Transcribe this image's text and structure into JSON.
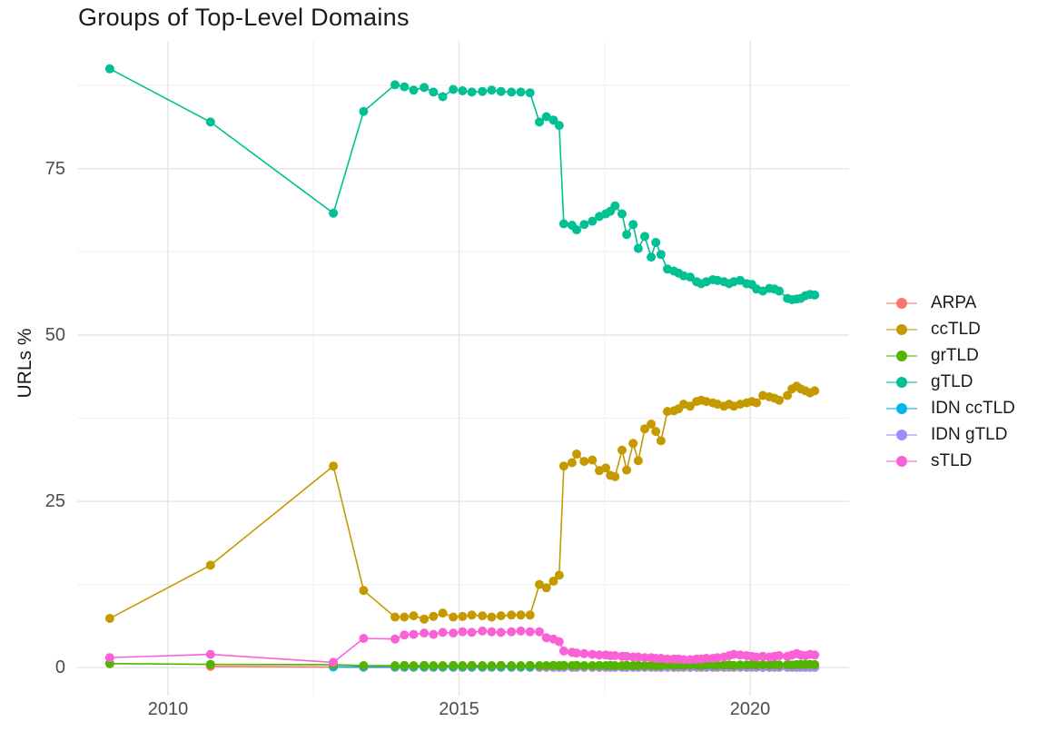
{
  "chart_data": {
    "type": "line",
    "title": "Groups of Top-Level Domains",
    "xlabel": "",
    "ylabel": "URLs %",
    "grid": true,
    "legend_position": "right",
    "axes": {
      "xlim": [
        2008.44,
        2021.7
      ],
      "ylim": [
        -4.2,
        94.2
      ],
      "x_ticks": [
        {
          "label": "2010",
          "value": 2010
        },
        {
          "label": "2015",
          "value": 2015
        },
        {
          "label": "2020",
          "value": 2020
        }
      ],
      "y_ticks": [
        {
          "label": "0",
          "value": 0
        },
        {
          "label": "25",
          "value": 25
        },
        {
          "label": "50",
          "value": 50
        },
        {
          "label": "75",
          "value": 75
        }
      ],
      "x_minor": [
        2012.5,
        2017.5
      ],
      "y_minor": [
        12.5,
        37.5,
        62.5,
        87.5
      ]
    },
    "x": [
      2009.0,
      2010.73,
      2012.84,
      2013.36,
      2013.9,
      2014.06,
      2014.22,
      2014.4,
      2014.56,
      2014.72,
      2014.9,
      2015.06,
      2015.22,
      2015.4,
      2015.56,
      2015.72,
      2015.9,
      2016.06,
      2016.22,
      2016.38,
      2016.5,
      2016.62,
      2016.72,
      2016.8,
      2016.94,
      2017.02,
      2017.15,
      2017.29,
      2017.41,
      2017.52,
      2017.6,
      2017.68,
      2017.8,
      2017.88,
      2017.99,
      2018.08,
      2018.19,
      2018.3,
      2018.38,
      2018.47,
      2018.58,
      2018.69,
      2018.77,
      2018.86,
      2018.97,
      2019.08,
      2019.16,
      2019.25,
      2019.36,
      2019.44,
      2019.55,
      2019.64,
      2019.72,
      2019.83,
      2019.94,
      2020.03,
      2020.11,
      2020.22,
      2020.33,
      2020.42,
      2020.5,
      2020.64,
      2020.72,
      2020.8,
      2020.87,
      2020.95,
      2021.03,
      2021.11
    ],
    "draw_order": [
      "ARPA",
      "IDN ccTLD",
      "IDN gTLD",
      "gTLD",
      "ccTLD",
      "grTLD",
      "sTLD"
    ],
    "series": [
      {
        "name": "ARPA",
        "color": "#F8766D",
        "values": [
          null,
          0.2,
          0.1,
          0.05,
          0.05,
          0.05,
          0.05,
          0.05,
          0.05,
          0.05,
          0.05,
          0.05,
          0.05,
          0.05,
          0.05,
          0.05,
          0.05,
          0.05,
          0.05,
          0.05,
          0.05,
          0.05,
          0.05,
          0.05,
          0.05,
          0.05,
          0.05,
          0.05,
          0.05,
          0.05,
          0.05,
          0.05,
          0.05,
          0.05,
          0.05,
          0.05,
          0.05,
          0.05,
          0.05,
          0.05,
          0.05,
          0.05,
          0.05,
          0.05,
          0.05,
          0.05,
          0.05,
          0.05,
          0.05,
          0.05,
          0.05,
          0.05,
          0.05,
          0.05,
          0.05,
          0.05,
          0.05,
          0.05,
          0.05,
          0.05,
          0.05,
          0.05,
          0.05,
          0.05,
          0.05,
          0.05,
          0.05,
          0.05
        ]
      },
      {
        "name": "ccTLD",
        "color": "#C49A00",
        "values": [
          7.4,
          15.4,
          30.3,
          11.6,
          7.6,
          7.6,
          7.8,
          7.3,
          7.7,
          8.2,
          7.6,
          7.7,
          7.9,
          7.8,
          7.6,
          7.8,
          7.9,
          7.9,
          7.9,
          12.5,
          12.0,
          13.0,
          13.9,
          30.3,
          30.8,
          32.1,
          31.0,
          31.2,
          29.6,
          30.0,
          28.9,
          28.7,
          32.7,
          29.7,
          33.7,
          31.1,
          35.9,
          36.6,
          35.5,
          34.1,
          38.5,
          38.6,
          38.9,
          39.6,
          39.3,
          40.0,
          40.2,
          40.0,
          39.8,
          39.6,
          39.3,
          39.6,
          39.3,
          39.6,
          39.8,
          40.0,
          39.8,
          40.9,
          40.7,
          40.5,
          40.2,
          40.9,
          41.9,
          42.3,
          41.9,
          41.6,
          41.3,
          41.6
        ]
      },
      {
        "name": "grTLD",
        "color": "#53B400",
        "values": [
          0.6,
          0.5,
          0.45,
          0.3,
          0.3,
          0.35,
          0.3,
          0.35,
          0.3,
          0.3,
          0.35,
          0.3,
          0.35,
          0.3,
          0.3,
          0.35,
          0.3,
          0.3,
          0.35,
          0.3,
          0.3,
          0.35,
          0.3,
          0.35,
          0.3,
          0.35,
          0.3,
          0.3,
          0.35,
          0.3,
          0.35,
          0.3,
          0.3,
          0.35,
          0.3,
          0.35,
          0.3,
          0.35,
          0.3,
          0.3,
          0.4,
          0.35,
          0.4,
          0.35,
          0.4,
          0.4,
          0.35,
          0.4,
          0.4,
          0.35,
          0.4,
          0.4,
          0.35,
          0.4,
          0.4,
          0.45,
          0.4,
          0.45,
          0.4,
          0.45,
          0.4,
          0.45,
          0.4,
          0.45,
          0.5,
          0.45,
          0.5,
          0.45
        ]
      },
      {
        "name": "gTLD",
        "color": "#00C094",
        "values": [
          90.0,
          82.0,
          68.3,
          83.6,
          87.6,
          87.3,
          86.8,
          87.2,
          86.5,
          85.8,
          86.9,
          86.7,
          86.5,
          86.6,
          86.8,
          86.6,
          86.5,
          86.5,
          86.4,
          82.0,
          82.8,
          82.3,
          81.5,
          66.7,
          66.5,
          65.8,
          66.6,
          67.1,
          67.8,
          68.2,
          68.6,
          69.4,
          68.2,
          65.1,
          66.6,
          63.0,
          64.8,
          61.7,
          63.9,
          62.1,
          59.9,
          59.6,
          59.3,
          58.9,
          58.7,
          58.0,
          57.7,
          58.0,
          58.3,
          58.2,
          58.0,
          57.7,
          58.0,
          58.2,
          57.7,
          57.6,
          56.9,
          56.6,
          57.0,
          56.9,
          56.6,
          55.5,
          55.3,
          55.4,
          55.5,
          55.9,
          56.1,
          56.0
        ]
      },
      {
        "name": "IDN ccTLD",
        "color": "#00B6EB",
        "values": [
          null,
          null,
          0.12,
          0.12,
          0.12,
          0.12,
          0.12,
          0.12,
          0.12,
          0.12,
          0.12,
          0.12,
          0.12,
          0.12,
          0.12,
          0.12,
          0.12,
          0.12,
          0.12,
          0.12,
          0.12,
          0.12,
          0.12,
          0.12,
          0.12,
          0.12,
          0.12,
          0.12,
          0.12,
          0.12,
          0.12,
          0.12,
          0.12,
          0.12,
          0.12,
          0.12,
          0.12,
          0.12,
          0.12,
          0.12,
          0.12,
          0.12,
          0.12,
          0.12,
          0.12,
          0.12,
          0.12,
          0.12,
          0.12,
          0.12,
          0.12,
          0.12,
          0.12,
          0.12,
          0.12,
          0.12,
          0.12,
          0.12,
          0.12,
          0.12,
          0.12,
          0.12,
          0.12,
          0.12,
          0.12,
          0.12,
          0.12,
          0.12
        ]
      },
      {
        "name": "IDN gTLD",
        "color": "#A58AFF",
        "values": [
          null,
          null,
          null,
          null,
          null,
          null,
          null,
          null,
          null,
          null,
          null,
          null,
          null,
          null,
          null,
          null,
          null,
          null,
          null,
          0.1,
          0.1,
          0.1,
          0.1,
          0.1,
          0.1,
          0.1,
          0.1,
          0.1,
          0.1,
          0.1,
          0.1,
          0.1,
          0.1,
          0.1,
          0.1,
          0.1,
          0.1,
          0.1,
          0.1,
          0.1,
          0.1,
          0.1,
          0.1,
          0.1,
          0.1,
          0.1,
          0.1,
          0.1,
          0.1,
          0.1,
          0.1,
          0.1,
          0.1,
          0.1,
          0.1,
          0.1,
          0.1,
          0.1,
          0.1,
          0.1,
          0.1,
          0.1,
          0.1,
          0.1,
          0.1,
          0.1,
          0.1,
          0.1
        ]
      },
      {
        "name": "sTLD",
        "color": "#FB61D7",
        "values": [
          1.5,
          2.0,
          0.8,
          4.4,
          4.3,
          4.9,
          5.0,
          5.2,
          5.0,
          5.3,
          5.2,
          5.4,
          5.3,
          5.5,
          5.4,
          5.3,
          5.4,
          5.5,
          5.4,
          5.4,
          4.5,
          4.3,
          3.9,
          2.5,
          2.3,
          2.2,
          2.1,
          2.0,
          1.9,
          1.9,
          1.8,
          1.8,
          1.7,
          1.7,
          1.6,
          1.6,
          1.5,
          1.5,
          1.4,
          1.4,
          1.3,
          1.3,
          1.3,
          1.2,
          1.2,
          1.3,
          1.3,
          1.4,
          1.4,
          1.5,
          1.6,
          1.8,
          2.0,
          1.9,
          1.8,
          1.7,
          1.6,
          1.7,
          1.6,
          1.7,
          1.8,
          1.7,
          1.9,
          2.1,
          1.9,
          1.8,
          2.0,
          1.9
        ]
      }
    ]
  }
}
